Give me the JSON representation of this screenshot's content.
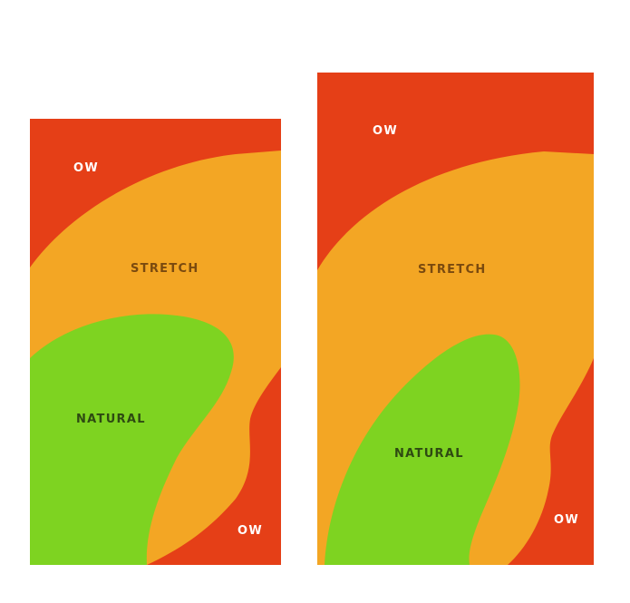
{
  "colors": {
    "ow": "#E53F17",
    "stretch": "#F3A624",
    "natural": "#7ED321",
    "ow_text": "#FFFFFF",
    "stretch_text": "#7A4A0F",
    "natural_text": "#2E4A12"
  },
  "phones": [
    {
      "zones": {
        "ow": "OW",
        "stretch": "STRETCH",
        "natural": "NATURAL",
        "ow_bottom": "OW"
      }
    },
    {
      "zones": {
        "ow": "OW",
        "stretch": "STRETCH",
        "natural": "NATURAL",
        "ow_bottom": "OW"
      }
    }
  ]
}
